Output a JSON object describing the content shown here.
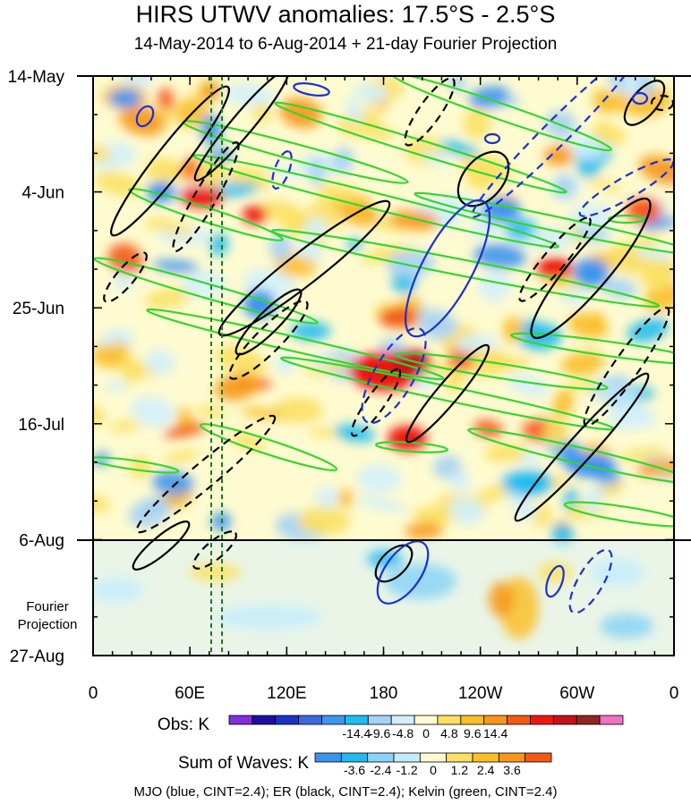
{
  "title": "HIRS UTWV anomalies: 17.5°S - 2.5°S",
  "subtitle": "14-May-2014 to 6-Aug-2014 + 21-day Fourier Projection",
  "projection_label_lines": [
    "Fourier",
    "Projection"
  ],
  "footnote": "MJO (blue, CINT=2.4); ER (black, CINT=2.4); Kelvin (green, CINT=2.4)",
  "obs_colorbar": {
    "label": "Obs: K",
    "ticks": [
      "-14.4",
      "-9.6",
      "-4.8",
      "0",
      "4.8",
      "9.6",
      "14.4"
    ],
    "colors": [
      "#7f2fdc",
      "#1e0ea0",
      "#1a33c7",
      "#3b68e0",
      "#3e95ee",
      "#20bcf0",
      "#a5d2f5",
      "#d2f0fc",
      "#fefbd0",
      "#fbe062",
      "#f9be28",
      "#f7961a",
      "#f35a14",
      "#ec1810",
      "#c4121a",
      "#912620",
      "#f16fc5"
    ]
  },
  "waves_colorbar": {
    "label": "Sum of Waves: K",
    "ticks": [
      "-3.6",
      "-2.4",
      "-1.2",
      "0",
      "1.2",
      "2.4",
      "3.6"
    ],
    "colors": [
      "#3a94ee",
      "#23b8f1",
      "#8ad3f6",
      "#c5ecfb",
      "#fefbd2",
      "#fbe063",
      "#f9bf29",
      "#f7961b",
      "#f35b15"
    ]
  },
  "chart_data": {
    "type": "heatmap",
    "title": "HIRS UTWV anomalies: 17.5°S - 2.5°S",
    "subtitle": "14-May-2014 to 6-Aug-2014 + 21-day Fourier Projection",
    "x_axis": {
      "ticks": [
        "0",
        "60E",
        "120E",
        "180",
        "120W",
        "60W",
        "0"
      ],
      "range_deg_east": [
        0,
        360
      ]
    },
    "y_axis": {
      "ticks": [
        "14-May",
        "4-Jun",
        "25-Jun",
        "16-Jul",
        "6-Aug",
        "27-Aug"
      ],
      "range": [
        "14-May-2014",
        "27-Aug-2014"
      ]
    },
    "observation_end": "6-Aug",
    "reference_meridians_deg_east": [
      75,
      81
    ],
    "series": [
      {
        "name": "MJO",
        "color": "blue",
        "cint": 2.4
      },
      {
        "name": "ER",
        "color": "black",
        "cint": 2.4
      },
      {
        "name": "Kelvin",
        "color": "green",
        "cint": 2.4
      }
    ]
  }
}
